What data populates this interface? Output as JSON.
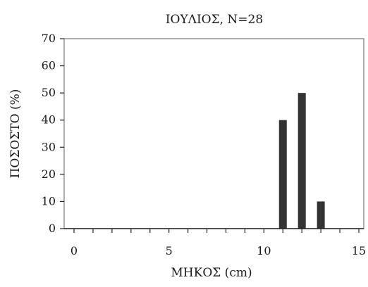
{
  "chart_data": {
    "type": "bar",
    "title": "ΙΟΥΛΙΟΣ, Ν=28",
    "xlabel": "ΜΗΚΟΣ (cm)",
    "ylabel": "ΠΟΣΟΣΤΟ (%)",
    "xlim": [
      0,
      15
    ],
    "ylim": [
      0,
      70
    ],
    "x_ticks": [
      "0",
      "5",
      "10",
      "15"
    ],
    "y_ticks": [
      "0",
      "10",
      "20",
      "30",
      "40",
      "50",
      "60",
      "70"
    ],
    "x_minor_step": 1,
    "y_major_step": 10,
    "grid": false,
    "bar_color": "#333333",
    "x": [
      11,
      12,
      13
    ],
    "values": [
      40,
      50,
      10
    ]
  }
}
